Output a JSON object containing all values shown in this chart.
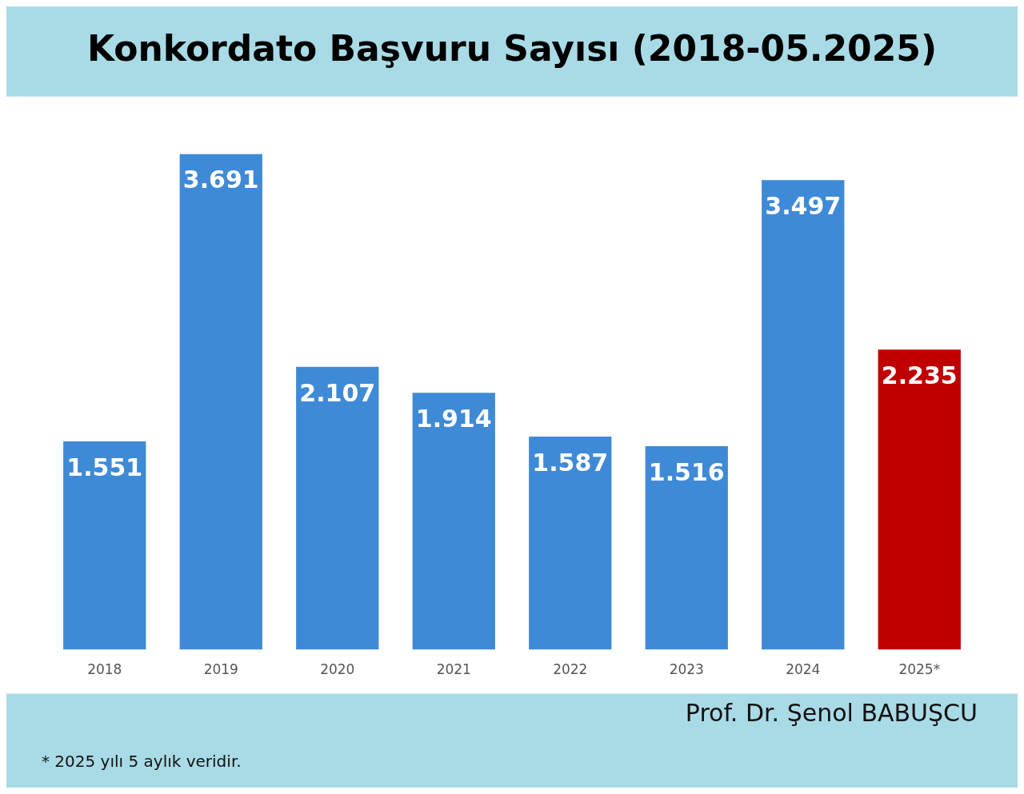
{
  "chart_data": {
    "type": "bar",
    "title": "Konkordato Başvuru Sayısı (2018-05.2025)",
    "categories": [
      "2018",
      "2019",
      "2020",
      "2021",
      "2022",
      "2023",
      "2024",
      "2025*"
    ],
    "values": [
      1551,
      3691,
      2107,
      1914,
      1587,
      1516,
      3497,
      2235
    ],
    "value_labels": [
      "1.551",
      "3.691",
      "2.107",
      "1.914",
      "1.587",
      "1.516",
      "3.497",
      "2.235"
    ],
    "colors": [
      "#3f8ad6",
      "#3f8ad6",
      "#3f8ad6",
      "#3f8ad6",
      "#3f8ad6",
      "#3f8ad6",
      "#3f8ad6",
      "#c00000"
    ],
    "annotations": [
      "Prof. Dr. Şenol BABUŞCU",
      "* 2025 yılı 5 aylık veridir."
    ],
    "grid": false,
    "legend": false
  }
}
